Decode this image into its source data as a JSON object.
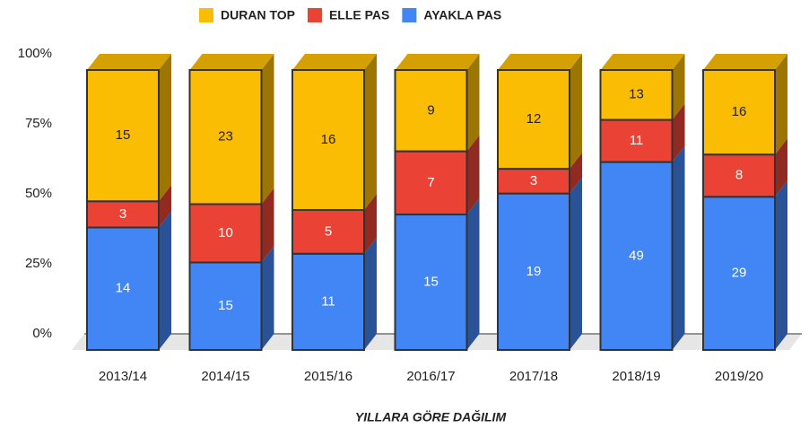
{
  "chart_data": {
    "type": "bar",
    "stacking": "percent",
    "x_label": "YILLARA GÖRE DAĞILIM",
    "categories": [
      "2013/14",
      "2014/15",
      "2015/16",
      "2016/17",
      "2017/18",
      "2018/19",
      "2019/20"
    ],
    "series": [
      {
        "name": "DURAN TOP",
        "color": "#fbbc04",
        "values": [
          15,
          23,
          16,
          9,
          12,
          13,
          16
        ]
      },
      {
        "name": "ELLE PAS",
        "color": "#ea4335",
        "values": [
          3,
          10,
          5,
          7,
          3,
          11,
          8
        ]
      },
      {
        "name": "AYAKLA PAS",
        "color": "#4285f4",
        "values": [
          14,
          15,
          11,
          15,
          19,
          49,
          29
        ]
      }
    ],
    "ylim": [
      0,
      100
    ],
    "yticks": [
      {
        "value": 0,
        "label": "0%"
      },
      {
        "value": 25,
        "label": "25%"
      },
      {
        "value": 50,
        "label": "50%"
      },
      {
        "value": 75,
        "label": "75%"
      },
      {
        "value": 100,
        "label": "100%"
      }
    ],
    "legend": "top"
  }
}
